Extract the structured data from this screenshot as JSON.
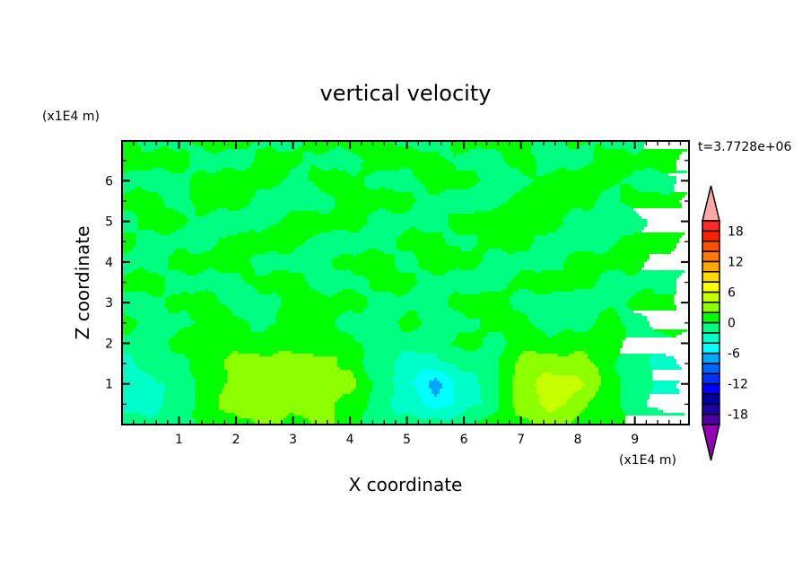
{
  "chart_data": {
    "type": "heatmap",
    "subtype": "filled-contour",
    "title": "vertical velocity",
    "xlabel": "X coordinate",
    "ylabel": "Z coordinate",
    "x_unit_label": "(x1E4 m)",
    "y_unit_label": "(x1E4 m)",
    "time_label": "t=3.7728e+06",
    "xlim": [
      0,
      9.95
    ],
    "ylim": [
      0,
      6.98
    ],
    "x_ticks": [
      1,
      2,
      3,
      4,
      5,
      6,
      7,
      8,
      9
    ],
    "y_ticks": [
      1,
      2,
      3,
      4,
      5,
      6
    ],
    "colorbar": {
      "levels": [
        -20,
        -18,
        -16,
        -14,
        -12,
        -10,
        -8,
        -6,
        -4,
        -2,
        0,
        2,
        4,
        6,
        8,
        10,
        12,
        14,
        16,
        18,
        20
      ],
      "tick_labels": [
        "18",
        "12",
        "6",
        "0",
        "-6",
        "-12",
        "-18"
      ],
      "tick_values": [
        18,
        12,
        6,
        0,
        -6,
        -12,
        -18
      ],
      "colors": [
        "#5000a0",
        "#1e00a0",
        "#0000a0",
        "#0000ff",
        "#0032ff",
        "#0064ff",
        "#00a8ff",
        "#00ffff",
        "#00ffc8",
        "#00ff80",
        "#00ff00",
        "#8cff00",
        "#c8ff00",
        "#ffff00",
        "#ffd800",
        "#ffa800",
        "#ff7800",
        "#ff5000",
        "#ff2000",
        "#ff2828"
      ],
      "over_color": "#ffa8a8",
      "under_color": "#9600b4"
    },
    "grid": {
      "x": [
        0,
        0.5,
        1,
        1.5,
        2,
        2.5,
        3,
        3.5,
        4,
        4.5,
        5,
        5.5,
        6,
        6.5,
        7,
        7.5,
        8,
        8.5,
        9,
        9.5,
        10
      ],
      "z": [
        0,
        0.5,
        1,
        1.5,
        2,
        2.5,
        3,
        3.5,
        4,
        4.5,
        5,
        5.5,
        6,
        6.5,
        7
      ],
      "values": [
        [
          -1,
          -1,
          -1,
          1,
          1,
          3,
          1,
          3,
          1,
          -1,
          -1,
          -1,
          -1,
          1,
          1,
          3,
          1,
          1,
          -1,
          -1,
          -1
        ],
        [
          -3,
          -3,
          -1,
          1,
          3,
          3,
          3,
          3,
          1,
          -1,
          -3,
          -5,
          -3,
          -1,
          3,
          5,
          3,
          1,
          -1,
          -3,
          -3
        ],
        [
          -3,
          -3,
          -1,
          1,
          3,
          3,
          3,
          3,
          3,
          -1,
          -3,
          -7,
          -3,
          -1,
          3,
          5,
          5,
          1,
          -1,
          -3,
          -5
        ],
        [
          -3,
          -1,
          -1,
          1,
          3,
          3,
          3,
          3,
          1,
          -1,
          -3,
          -3,
          -1,
          -1,
          3,
          3,
          3,
          1,
          -1,
          -3,
          -1
        ],
        [
          -1,
          -1,
          1,
          1,
          1,
          1,
          1,
          1,
          1,
          -1,
          -1,
          -1,
          1,
          -1,
          1,
          1,
          1,
          1,
          -1,
          -1,
          -1
        ],
        [
          1,
          -1,
          -1,
          1,
          1,
          -1,
          1,
          1,
          -1,
          -1,
          1,
          -1,
          -1,
          1,
          1,
          -1,
          -1,
          1,
          -1,
          1,
          1
        ],
        [
          -1,
          -1,
          1,
          1,
          -1,
          -1,
          1,
          1,
          1,
          -1,
          -1,
          -1,
          1,
          1,
          -1,
          -1,
          -1,
          -1,
          1,
          1,
          -1
        ],
        [
          1,
          1,
          -1,
          -1,
          -1,
          1,
          1,
          -1,
          -1,
          1,
          1,
          -1,
          -1,
          -1,
          1,
          1,
          1,
          -1,
          -1,
          -1,
          1
        ],
        [
          -1,
          -1,
          1,
          1,
          1,
          -1,
          -1,
          -1,
          1,
          1,
          -1,
          1,
          1,
          -1,
          -1,
          -1,
          1,
          1,
          1,
          -1,
          -1
        ],
        [
          1,
          -1,
          -1,
          -1,
          1,
          1,
          1,
          -1,
          -1,
          -1,
          1,
          1,
          -1,
          1,
          1,
          -1,
          -1,
          -1,
          1,
          1,
          -1
        ],
        [
          -1,
          1,
          1,
          -1,
          -1,
          -1,
          1,
          1,
          1,
          -1,
          -1,
          -1,
          1,
          1,
          1,
          1,
          -1,
          -1,
          -1,
          1,
          1
        ],
        [
          1,
          1,
          -1,
          1,
          1,
          -1,
          -1,
          -1,
          1,
          1,
          1,
          -1,
          -1,
          -1,
          1,
          1,
          1,
          -1,
          1,
          1,
          -1
        ],
        [
          -1,
          -1,
          -1,
          1,
          1,
          1,
          -1,
          1,
          1,
          -1,
          -1,
          1,
          1,
          -1,
          -1,
          1,
          1,
          1,
          -1,
          -1,
          1
        ],
        [
          1,
          1,
          1,
          -1,
          -1,
          1,
          1,
          -1,
          -1,
          1,
          1,
          1,
          -1,
          -1,
          1,
          -1,
          -1,
          1,
          1,
          1,
          -1
        ],
        [
          1,
          -1,
          -1,
          1,
          1,
          -1,
          -1,
          1,
          1,
          1,
          -1,
          -1,
          1,
          1,
          1,
          -1,
          1,
          -1,
          -1,
          1,
          1
        ]
      ]
    }
  }
}
